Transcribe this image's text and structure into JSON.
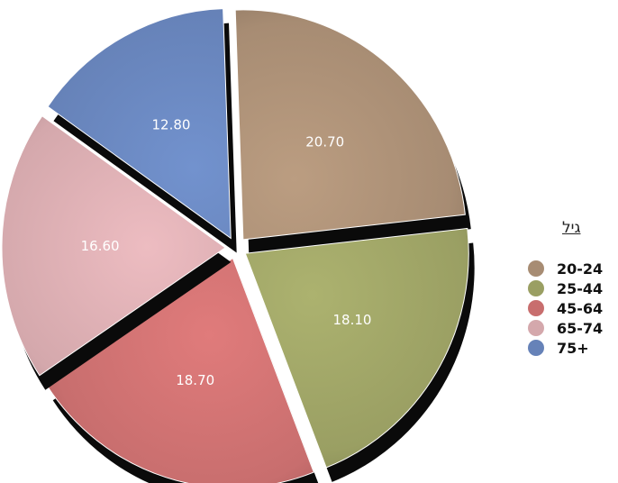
{
  "chart_data": {
    "type": "pie",
    "title": "",
    "legend_title": "גיל",
    "legend_position": "right",
    "categories": [
      "20-24",
      "25-44",
      "45-64",
      "65-74",
      "75+"
    ],
    "values": [
      20.7,
      18.1,
      18.7,
      16.6,
      12.8
    ],
    "value_labels": [
      "20.70",
      "18.10",
      "18.70",
      "16.60",
      "12.80"
    ],
    "colors": [
      "#a78c73",
      "#9a9f63",
      "#c86e6e",
      "#d4a8ac",
      "#6682b8"
    ]
  }
}
